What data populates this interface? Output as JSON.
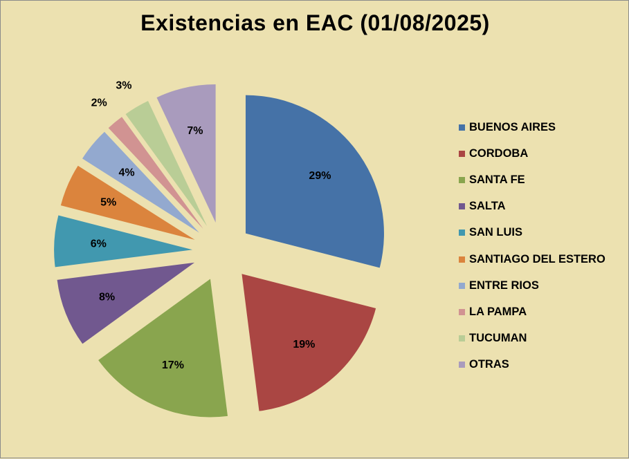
{
  "chart_data": {
    "type": "pie",
    "title": "Existencias en EAC (01/08/2025)",
    "exploded": true,
    "legend_position": "right",
    "slices": [
      {
        "label": "BUENOS AIRES",
        "value": 29,
        "display": "29%",
        "color": "#4572a7"
      },
      {
        "label": "CORDOBA",
        "value": 19,
        "display": "19%",
        "color": "#aa4643"
      },
      {
        "label": "SANTA FE",
        "value": 17,
        "display": "17%",
        "color": "#89a54e"
      },
      {
        "label": "SALTA",
        "value": 8,
        "display": "8%",
        "color": "#71588f"
      },
      {
        "label": "SAN LUIS",
        "value": 6,
        "display": "6%",
        "color": "#4198af"
      },
      {
        "label": "SANTIAGO DEL ESTERO",
        "value": 5,
        "display": "5%",
        "color": "#db843d"
      },
      {
        "label": "ENTRE RIOS",
        "value": 4,
        "display": "4%",
        "color": "#93a9cf"
      },
      {
        "label": "LA PAMPA",
        "value": 2,
        "display": "2%",
        "color": "#d19392"
      },
      {
        "label": "TUCUMAN",
        "value": 3,
        "display": "3%",
        "color": "#b9cd96"
      },
      {
        "label": "OTRAS",
        "value": 7,
        "display": "7%",
        "color": "#a99bbd"
      }
    ]
  }
}
